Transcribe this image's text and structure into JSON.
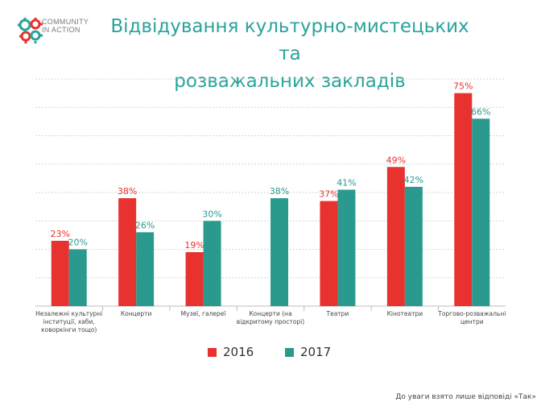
{
  "logo": {
    "line1": "COMMUNITY",
    "line2": "IN ACTION"
  },
  "title": {
    "line1": "Відвідування культурно-мистецьких та",
    "line2": "розважальних закладів"
  },
  "footnote": "До уваги взято лише відповіді «Так»",
  "colors": {
    "series2016": "#e8322f",
    "series2017": "#2a9a8f",
    "title": "#2aa39a",
    "grid": "#d6d6d6"
  },
  "chart_data": {
    "type": "bar",
    "categories": [
      [
        "Незалежні культурні",
        "інституції, хаби,",
        "коворкінги тощо)"
      ],
      [
        "Концерти"
      ],
      [
        "Музеї, галереї"
      ],
      [
        "Концерти (на",
        "відкритому просторі)"
      ],
      [
        "Театри"
      ],
      [
        "Кінотеатри"
      ],
      [
        "Торгово-розважальні",
        "центри"
      ]
    ],
    "series": [
      {
        "name": "2016",
        "values": [
          23,
          38,
          19,
          null,
          37,
          49,
          75
        ],
        "labels": [
          "23%",
          "38%",
          "19%",
          "",
          "37%",
          "49%",
          "75%"
        ]
      },
      {
        "name": "2017",
        "values": [
          20,
          26,
          30,
          38,
          41,
          42,
          66
        ],
        "labels": [
          "20%",
          "26%",
          "30%",
          "38%",
          "41%",
          "42%",
          "66%"
        ]
      }
    ],
    "ylim": [
      0,
      80
    ],
    "grid": true,
    "legend": "bottom"
  }
}
